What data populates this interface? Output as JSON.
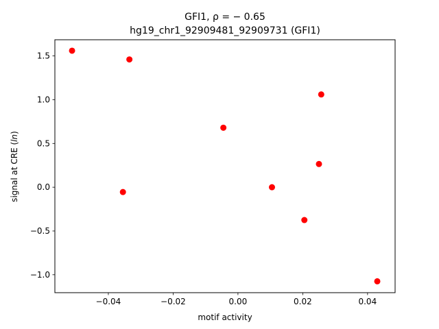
{
  "chart_data": {
    "type": "scatter",
    "title_line1": "GFI1, ρ = − 0.65",
    "title_line2": "hg19_chr1_92909481_92909731 (GFI1)",
    "xlabel": "motif activity",
    "ylabel": "signal at CRE (ln)",
    "xlim": [
      -0.0565,
      0.0485
    ],
    "ylim": [
      -1.205,
      1.685
    ],
    "xticks": [
      -0.04,
      -0.02,
      0.0,
      0.02,
      0.04
    ],
    "xtick_labels": [
      "−0.04",
      "−0.02",
      "0.00",
      "0.02",
      "0.04"
    ],
    "yticks": [
      -1.0,
      -0.5,
      0.0,
      0.5,
      1.0,
      1.5
    ],
    "ytick_labels": [
      "−1.0",
      "−0.5",
      "0.0",
      "0.5",
      "1.0",
      "1.5"
    ],
    "grid": false,
    "marker_color": "#ff0000",
    "points": [
      {
        "x": -0.0512,
        "y": 1.56
      },
      {
        "x": -0.0335,
        "y": 1.46
      },
      {
        "x": -0.0355,
        "y": -0.055
      },
      {
        "x": -0.0045,
        "y": 0.68
      },
      {
        "x": 0.0105,
        "y": 0.0
      },
      {
        "x": 0.0205,
        "y": -0.375
      },
      {
        "x": 0.025,
        "y": 0.265
      },
      {
        "x": 0.0257,
        "y": 1.06
      },
      {
        "x": 0.043,
        "y": -1.075
      }
    ]
  }
}
